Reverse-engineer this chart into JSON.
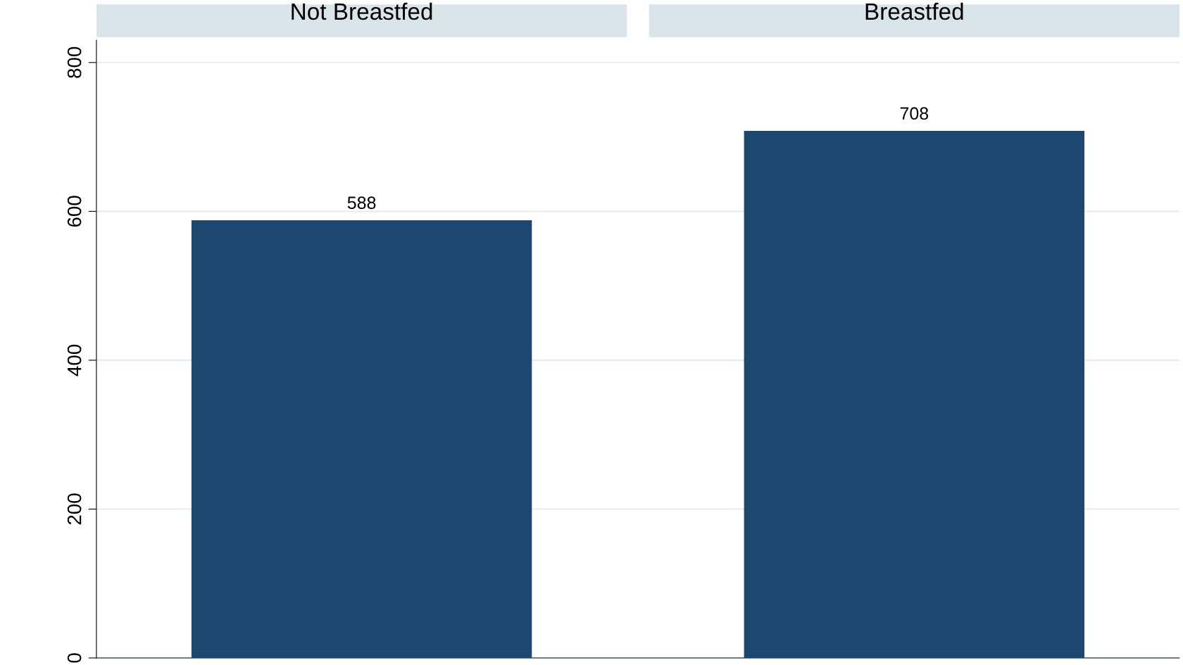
{
  "chart_data": {
    "type": "bar",
    "categories": [
      "Not Breastfed",
      "Breastfed"
    ],
    "values": [
      588,
      708
    ],
    "color": "#1c4870",
    "ylim": [
      0,
      830
    ],
    "yticks": [
      0,
      200,
      400,
      600,
      800
    ],
    "grid": "y",
    "data_labels": true
  }
}
